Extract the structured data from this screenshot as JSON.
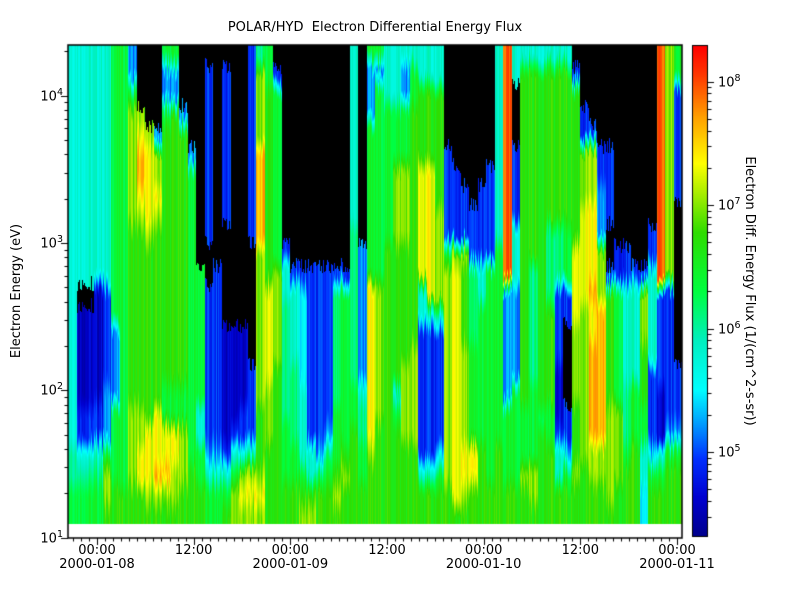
{
  "chart_data": {
    "type": "heatmap",
    "title": "POLAR/HYD  Electron Differential Energy Flux",
    "ylabel": "Electron Energy (eV)",
    "y_axis": {
      "scale": "log",
      "unit": "eV",
      "range_ev": [
        10,
        22000
      ],
      "tick_exponents": [
        4,
        3,
        2,
        1
      ],
      "tick_base": "10"
    },
    "x_axis": {
      "minor_tick_interval": "1 hour",
      "major_ticks": [
        {
          "time": "00:00",
          "date": "2000-01-08",
          "hour": 0
        },
        {
          "time": "12:00",
          "date": "",
          "hour": 12
        },
        {
          "time": "00:00",
          "date": "2000-01-09",
          "hour": 24
        },
        {
          "time": "12:00",
          "date": "",
          "hour": 36
        },
        {
          "time": "00:00",
          "date": "2000-01-10",
          "hour": 48
        },
        {
          "time": "12:00",
          "date": "",
          "hour": 60
        },
        {
          "time": "00:00",
          "date": "2000-01-11",
          "hour": 72
        }
      ]
    },
    "colorbar": {
      "label": "Electron Diff. Energy Flux (1/(cm^2-s-sr))",
      "scale": "log",
      "log_range": [
        4.312,
        8.296
      ],
      "tick_exponents": [
        8,
        7,
        6,
        5
      ],
      "tick_base": "10",
      "colormap_stops": [
        [
          0.0,
          "#00008B"
        ],
        [
          0.08,
          "#0000D0"
        ],
        [
          0.16,
          "#0030FF"
        ],
        [
          0.24,
          "#00AAFF"
        ],
        [
          0.3,
          "#00FFFF"
        ],
        [
          0.4,
          "#00F0C0"
        ],
        [
          0.5,
          "#00FF40"
        ],
        [
          0.62,
          "#30DD00"
        ],
        [
          0.7,
          "#AAEE00"
        ],
        [
          0.76,
          "#FFFF00"
        ],
        [
          0.85,
          "#FFA500"
        ],
        [
          0.94,
          "#FF3800"
        ],
        [
          1.0,
          "#FF0000"
        ]
      ]
    },
    "value_key_log10_flux": {
      ".": null,
      "1": 4.6,
      "2": 4.9,
      "3": 5.2,
      "4": 5.5,
      "5": 5.8,
      "6": 6.1,
      "7": 6.4,
      "8": 6.7,
      "9": 7.0,
      "a": 7.3,
      "b": 7.6,
      "c": 7.9
    },
    "grid_info": {
      "cols": 72,
      "rows": 24,
      "note": "columns are hourly time bins left-to-right; each string is 24 energy bins top (high energy) to bottom (low energy); '.' = below threshold (black)"
    },
    "columns": [
      "555555555555555555556677",
      "555555555555.11111225677",
      "555555555555.11111225677",
      "555555555555111111225677",
      "555555555555222223337998",
      "777777777777773333777788",
      "777777777777777777777788",
      "337999999888888888999988",
      "...9abba988888888899aa88",
      "....9aaaa9888888888aaa98",
      "....399a9888888888aaab98",
      "7337888888888888877aab98",
      "7338888888888888877aa998",
      "...388888888888887799988",
      ".....3777777777777777888",
      "...........7777777557788",
      ".222222222..222222223577",
      "...........2222222223577",
      ".22222222.....1111112578",
      "..............1111125799",
      "..............11112259a9",
      "2222222222......222259a9",
      "69999bbbbb999999998889a9",
      "778888888888aaaaa9998888",
      ".27777777779999988888888",
      "..........25566666677788",
      "...........2555566667788",
      "...........2444445555789",
      "...........2222222225589",
      "...........2222222223688",
      "...........2222222236788",
      "...........2666666777898",
      "...........2777777778988",
      "555555555666666667788888",
      "..........33333335667788",
      "733377777777aaaaaaaa9888",
      "737777777777999999988888",
      "555777777788888888888888",
      "555777999988888885788888",
      "533777999988888899998888",
      "577888888888888999998888",
      "558888aaaaaa552222222588",
      "558888aaaaaaa52222222588",
      "558888889999952222224788",
      ".....2222279999999999988",
      "......22229aaaaaaaaaaaa8",
      ".......2229888899999aa98",
      "........222666677777aa88",
      ".......22225577777778888",
      "......222227777777777788",
      "555555555577777777778888",
      "cccccccccccc333333777788",
      "55...2222555333337777788",
      "588888888888888888777988",
      "588888888886666667777998",
      "588888888888888888788888",
      "588888888666688888778888",
      "588888888666222211125588",
      "58888888877722....224788",
      ".288888888aaaa9999888988",
      "...22999aaaaa99999999888",
      "....2999aaaabaabbbbb9988",
      ".....22333999bbbbbbb9988",
      ".....2222..2888888999998",
      "..........22777777999988",
      "..........22555556667888",
      "...........2555557778888",
      "...........2999888775544",
      ".........225555522224788",
      "cccccccccccc222221115788",
      "999999999999222222237888",
      "77222222........22237888"
    ]
  }
}
